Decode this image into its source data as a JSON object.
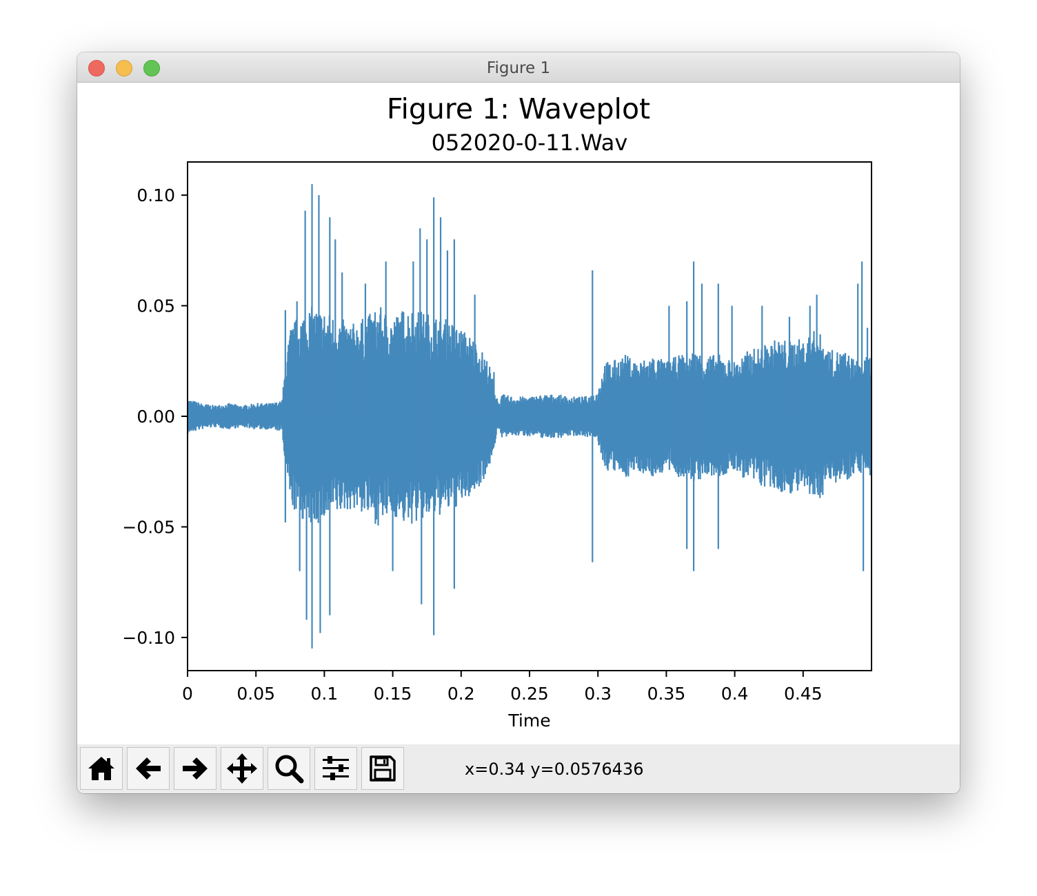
{
  "window": {
    "title": "Figure 1",
    "controls": [
      "close-icon",
      "minimize-icon",
      "zoom-icon"
    ]
  },
  "toolbar": {
    "buttons": [
      {
        "name": "home",
        "icon": "home-icon"
      },
      {
        "name": "back",
        "icon": "arrow-left-icon"
      },
      {
        "name": "forward",
        "icon": "arrow-right-icon"
      },
      {
        "name": "pan",
        "icon": "move-icon"
      },
      {
        "name": "zoom",
        "icon": "magnifier-icon"
      },
      {
        "name": "configure-subplots",
        "icon": "sliders-icon"
      },
      {
        "name": "save",
        "icon": "floppy-disk-icon"
      }
    ],
    "coords": "x=0.34 y=0.0576436"
  },
  "chart_data": {
    "type": "line",
    "suptitle": "Figure 1: Waveplot",
    "title": "052020-0-11.Wav",
    "xlabel": "Time",
    "ylabel": "",
    "xlim": [
      0,
      0.5
    ],
    "ylim": [
      -0.115,
      0.115
    ],
    "xticks": [
      0,
      0.05,
      0.1,
      0.15,
      0.2,
      0.25,
      0.3,
      0.35,
      0.4,
      0.45
    ],
    "xtick_labels": [
      "0",
      "0.05",
      "0.1",
      "0.15",
      "0.2",
      "0.25",
      "0.3",
      "0.35",
      "0.4",
      "0.45"
    ],
    "yticks": [
      0.1,
      0.05,
      0.0,
      -0.05,
      -0.1
    ],
    "ytick_labels": [
      "0.10",
      "0.05",
      "0.00",
      "−0.05",
      "−0.10"
    ],
    "grid": false,
    "color": "#4489bc",
    "envelope": {
      "description_of_series": "waveform amplitude envelope (time, +amplitude)",
      "time": [
        0,
        0.01,
        0.02,
        0.03,
        0.04,
        0.05,
        0.06,
        0.069,
        0.071,
        0.073,
        0.075,
        0.08,
        0.09,
        0.1,
        0.11,
        0.12,
        0.13,
        0.14,
        0.15,
        0.16,
        0.17,
        0.18,
        0.19,
        0.2,
        0.21,
        0.22,
        0.225,
        0.228,
        0.23,
        0.24,
        0.25,
        0.26,
        0.27,
        0.28,
        0.29,
        0.295,
        0.3,
        0.305,
        0.31,
        0.32,
        0.33,
        0.34,
        0.35,
        0.36,
        0.37,
        0.38,
        0.39,
        0.4,
        0.41,
        0.42,
        0.43,
        0.44,
        0.45,
        0.46,
        0.47,
        0.48,
        0.49,
        0.5
      ],
      "amplitude": [
        0.008,
        0.006,
        0.005,
        0.006,
        0.005,
        0.006,
        0.006,
        0.007,
        0.02,
        0.03,
        0.04,
        0.045,
        0.05,
        0.048,
        0.045,
        0.042,
        0.045,
        0.05,
        0.045,
        0.05,
        0.048,
        0.046,
        0.044,
        0.04,
        0.035,
        0.025,
        0.012,
        0.006,
        0.01,
        0.009,
        0.009,
        0.01,
        0.01,
        0.009,
        0.009,
        0.01,
        0.012,
        0.025,
        0.025,
        0.028,
        0.025,
        0.028,
        0.025,
        0.028,
        0.03,
        0.028,
        0.028,
        0.025,
        0.03,
        0.032,
        0.035,
        0.035,
        0.035,
        0.04,
        0.03,
        0.03,
        0.025,
        0.028
      ]
    },
    "peaks": [
      {
        "x": 0.0715,
        "y": 0.048
      },
      {
        "x": 0.0715,
        "y": -0.048
      },
      {
        "x": 0.08,
        "y": 0.052
      },
      {
        "x": 0.082,
        "y": -0.07
      },
      {
        "x": 0.086,
        "y": 0.093
      },
      {
        "x": 0.087,
        "y": -0.092
      },
      {
        "x": 0.091,
        "y": 0.105
      },
      {
        "x": 0.091,
        "y": -0.105
      },
      {
        "x": 0.096,
        "y": 0.1
      },
      {
        "x": 0.097,
        "y": -0.098
      },
      {
        "x": 0.104,
        "y": 0.09
      },
      {
        "x": 0.104,
        "y": -0.09
      },
      {
        "x": 0.108,
        "y": 0.08
      },
      {
        "x": 0.113,
        "y": 0.065
      },
      {
        "x": 0.13,
        "y": 0.06
      },
      {
        "x": 0.145,
        "y": 0.07
      },
      {
        "x": 0.15,
        "y": -0.07
      },
      {
        "x": 0.165,
        "y": 0.07
      },
      {
        "x": 0.17,
        "y": 0.085
      },
      {
        "x": 0.171,
        "y": -0.085
      },
      {
        "x": 0.175,
        "y": 0.08
      },
      {
        "x": 0.18,
        "y": 0.099
      },
      {
        "x": 0.18,
        "y": -0.099
      },
      {
        "x": 0.185,
        "y": 0.09
      },
      {
        "x": 0.19,
        "y": 0.075
      },
      {
        "x": 0.195,
        "y": 0.08
      },
      {
        "x": 0.195,
        "y": -0.078
      },
      {
        "x": 0.21,
        "y": 0.055
      },
      {
        "x": 0.224,
        "y": 0.02
      },
      {
        "x": 0.296,
        "y": 0.066
      },
      {
        "x": 0.296,
        "y": -0.066
      },
      {
        "x": 0.352,
        "y": 0.05
      },
      {
        "x": 0.365,
        "y": 0.052
      },
      {
        "x": 0.365,
        "y": -0.06
      },
      {
        "x": 0.37,
        "y": 0.07
      },
      {
        "x": 0.37,
        "y": -0.07
      },
      {
        "x": 0.376,
        "y": 0.06
      },
      {
        "x": 0.388,
        "y": 0.06
      },
      {
        "x": 0.388,
        "y": -0.06
      },
      {
        "x": 0.398,
        "y": 0.05
      },
      {
        "x": 0.42,
        "y": 0.05
      },
      {
        "x": 0.44,
        "y": 0.045
      },
      {
        "x": 0.455,
        "y": 0.05
      },
      {
        "x": 0.46,
        "y": 0.055
      },
      {
        "x": 0.49,
        "y": 0.06
      },
      {
        "x": 0.493,
        "y": 0.07
      },
      {
        "x": 0.494,
        "y": -0.07
      },
      {
        "x": 0.497,
        "y": 0.04
      }
    ]
  }
}
